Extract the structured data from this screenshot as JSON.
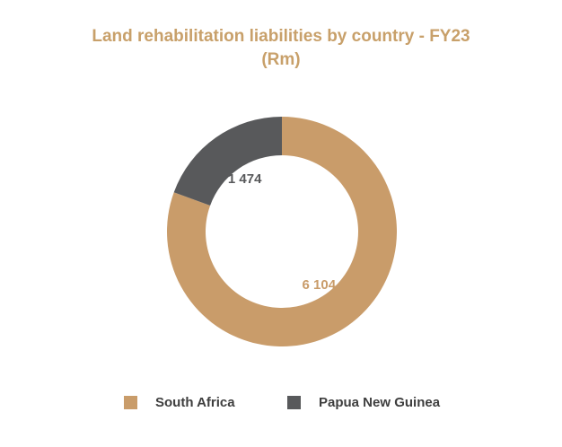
{
  "chart_data": {
    "type": "pie",
    "donut": true,
    "title_lines": [
      "Land rehabilitation liabilities by country - FY23",
      "(Rm)"
    ],
    "categories": [
      "South Africa",
      "Papua New Guinea"
    ],
    "values": [
      6104,
      1474
    ],
    "value_labels": [
      "6 104",
      "1 474"
    ],
    "colors": [
      "#c99c6a",
      "#58595b"
    ],
    "label_colors": [
      "#c99c6a",
      "#58595b"
    ],
    "legend_position": "bottom"
  }
}
